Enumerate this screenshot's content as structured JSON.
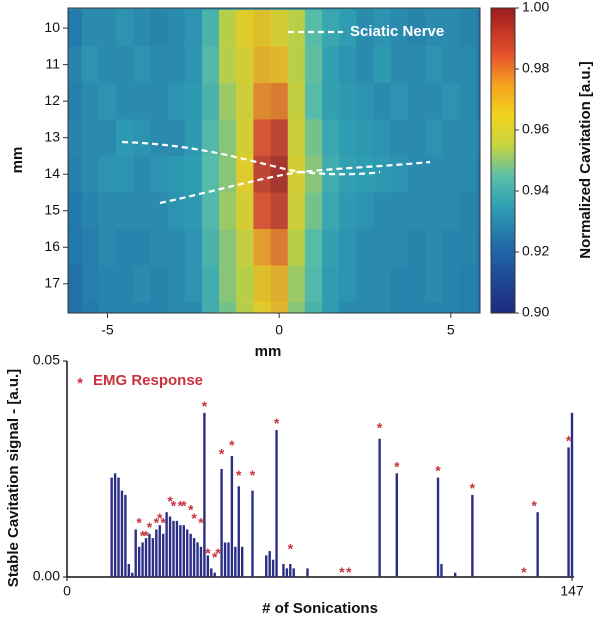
{
  "chart_data": [
    {
      "type": "heatmap",
      "xlabel": "mm",
      "ylabel": "mm",
      "x": [
        -6,
        -5.5,
        -5,
        -4.5,
        -4,
        -3.5,
        -3,
        -2.5,
        -2,
        -1.5,
        -1,
        -0.5,
        0,
        0.5,
        1,
        1.5,
        2,
        2.5,
        3,
        3.5,
        4,
        4.5,
        5,
        5.5,
        6
      ],
      "y": [
        10,
        11,
        12,
        13,
        14,
        15,
        16,
        17,
        18
      ],
      "values": [
        [
          0.925,
          0.93,
          0.93,
          0.932,
          0.93,
          0.928,
          0.93,
          0.932,
          0.942,
          0.955,
          0.965,
          0.968,
          0.962,
          0.955,
          0.945,
          0.938,
          0.935,
          0.93,
          0.932,
          0.93,
          0.928,
          0.93,
          0.93,
          0.928,
          0.925
        ],
        [
          0.928,
          0.932,
          0.93,
          0.93,
          0.932,
          0.93,
          0.93,
          0.932,
          0.944,
          0.955,
          0.962,
          0.972,
          0.97,
          0.955,
          0.946,
          0.936,
          0.932,
          0.93,
          0.934,
          0.93,
          0.93,
          0.932,
          0.93,
          0.93,
          0.926
        ],
        [
          0.926,
          0.93,
          0.932,
          0.93,
          0.93,
          0.93,
          0.932,
          0.934,
          0.942,
          0.952,
          0.96,
          0.978,
          0.98,
          0.958,
          0.945,
          0.936,
          0.934,
          0.932,
          0.93,
          0.932,
          0.93,
          0.93,
          0.932,
          0.93,
          0.926
        ],
        [
          0.928,
          0.93,
          0.93,
          0.934,
          0.932,
          0.93,
          0.93,
          0.934,
          0.944,
          0.95,
          0.962,
          0.985,
          0.99,
          0.96,
          0.948,
          0.938,
          0.935,
          0.934,
          0.932,
          0.93,
          0.93,
          0.932,
          0.93,
          0.93,
          0.928
        ],
        [
          0.926,
          0.93,
          0.932,
          0.932,
          0.93,
          0.932,
          0.934,
          0.935,
          0.945,
          0.95,
          0.965,
          0.99,
          0.995,
          0.962,
          0.95,
          0.94,
          0.936,
          0.935,
          0.934,
          0.932,
          0.93,
          0.93,
          0.93,
          0.93,
          0.926
        ],
        [
          0.924,
          0.928,
          0.93,
          0.93,
          0.93,
          0.93,
          0.932,
          0.934,
          0.944,
          0.952,
          0.962,
          0.985,
          0.99,
          0.96,
          0.948,
          0.938,
          0.934,
          0.932,
          0.93,
          0.93,
          0.93,
          0.93,
          0.93,
          0.928,
          0.925
        ],
        [
          0.924,
          0.926,
          0.93,
          0.928,
          0.928,
          0.93,
          0.93,
          0.932,
          0.942,
          0.95,
          0.958,
          0.975,
          0.98,
          0.955,
          0.945,
          0.936,
          0.932,
          0.93,
          0.93,
          0.93,
          0.928,
          0.93,
          0.928,
          0.928,
          0.924
        ],
        [
          0.922,
          0.926,
          0.928,
          0.928,
          0.93,
          0.928,
          0.93,
          0.932,
          0.94,
          0.95,
          0.955,
          0.968,
          0.972,
          0.952,
          0.944,
          0.935,
          0.932,
          0.93,
          0.93,
          0.928,
          0.928,
          0.93,
          0.928,
          0.926,
          0.924
        ],
        [
          0.922,
          0.925,
          0.928,
          0.928,
          0.928,
          0.928,
          0.93,
          0.93,
          0.94,
          0.948,
          0.955,
          0.965,
          0.97,
          0.95,
          0.942,
          0.935,
          0.93,
          0.93,
          0.93,
          0.928,
          0.928,
          0.928,
          0.928,
          0.926,
          0.924
        ]
      ],
      "xlim": [
        -6.15,
        5.85
      ],
      "ylim": [
        17.8,
        9.45
      ],
      "xticks": [
        -5,
        0,
        5
      ],
      "yticks": [
        10,
        11,
        12,
        13,
        14,
        15,
        16,
        17
      ],
      "annotation": "Sciatic Nerve",
      "colorbar": {
        "label": "Normalized Cavitation [a.u.]",
        "lim": [
          0.9,
          1.0
        ],
        "ticks": [
          {
            "value": 0.9,
            "label": "0.90"
          },
          0.92,
          0.94,
          0.96,
          0.98,
          {
            "value": 1.0,
            "label": "1.00"
          }
        ],
        "colorscale": [
          [
            0.9,
            "#1f2a7e"
          ],
          [
            0.92,
            "#1f64a6"
          ],
          [
            0.935,
            "#2f9fb3"
          ],
          [
            0.945,
            "#5cc0a8"
          ],
          [
            0.955,
            "#c7d53e"
          ],
          [
            0.965,
            "#f2d21e"
          ],
          [
            0.975,
            "#f4a11f"
          ],
          [
            0.985,
            "#e5502b"
          ],
          [
            1.0,
            "#9c1b1e"
          ]
        ]
      }
    },
    {
      "type": "bar",
      "xlabel": "# of Sonications",
      "ylabel": "Stable Cavitation signal - [a.u.]",
      "xlim": [
        0,
        147
      ],
      "xticks": [
        0,
        147
      ],
      "ylim": [
        0,
        0.05
      ],
      "yticks": [
        {
          "value": 0,
          "label": "0.00"
        },
        0.05
      ],
      "series": [
        {
          "color": "#2b2e86",
          "x": [
            13,
            14,
            15,
            16,
            17,
            18,
            19,
            20,
            21,
            22,
            23,
            24,
            25,
            26,
            27,
            28,
            29,
            30,
            31,
            32,
            33,
            34,
            35,
            36,
            37,
            38,
            39,
            40,
            41,
            42,
            43,
            45,
            46,
            47,
            48,
            49,
            50,
            51,
            54,
            58,
            59,
            60,
            61,
            63,
            64,
            65,
            66,
            70,
            91,
            96,
            108,
            109,
            113,
            118,
            137,
            146,
            147
          ],
          "values": [
            0.023,
            0.024,
            0.023,
            0.02,
            0.019,
            0.003,
            0.001,
            0.011,
            0.007,
            0.008,
            0.009,
            0.01,
            0.009,
            0.011,
            0.012,
            0.01,
            0.015,
            0.014,
            0.013,
            0.013,
            0.012,
            0.012,
            0.011,
            0.01,
            0.009,
            0.008,
            0.007,
            0.038,
            0.005,
            0.002,
            0.001,
            0.025,
            0.008,
            0.008,
            0.028,
            0.007,
            0.021,
            0.007,
            0.02,
            0.005,
            0.006,
            0.004,
            0.034,
            0.003,
            0.002,
            0.003,
            0.002,
            0.002,
            0.032,
            0.024,
            0.023,
            0.003,
            0.001,
            0.019,
            0.015,
            0.03,
            0.038
          ]
        },
        {
          "name": "EMG Response",
          "type": "scatter",
          "marker": "*",
          "color": "#c8323c",
          "x": [
            21,
            22,
            23,
            24,
            26,
            27,
            28,
            30,
            31,
            33,
            34,
            36,
            37,
            39,
            40,
            41,
            43,
            44,
            45,
            48,
            50,
            54,
            61,
            65,
            80,
            82,
            91,
            96,
            108,
            118,
            133,
            136,
            146
          ],
          "values": [
            0.013,
            0.01,
            0.01,
            0.012,
            0.013,
            0.014,
            0.013,
            0.018,
            0.017,
            0.017,
            0.017,
            0.016,
            0.014,
            0.013,
            0.04,
            0.006,
            0.005,
            0.006,
            0.029,
            0.031,
            0.024,
            0.024,
            0.036,
            0.007,
            0.0015,
            0.0015,
            0.035,
            0.026,
            0.025,
            0.021,
            0.0015,
            0.017,
            0.032
          ]
        }
      ]
    }
  ]
}
